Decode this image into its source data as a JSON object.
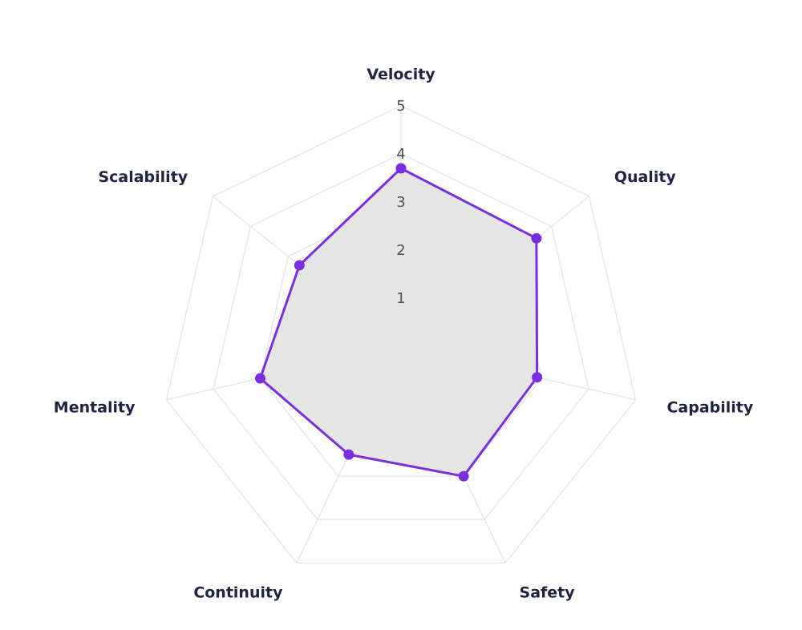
{
  "chart_data": {
    "type": "radar",
    "axes": [
      "Velocity",
      "Quality",
      "Capability",
      "Safety",
      "Continuity",
      "Mentality",
      "Scalability"
    ],
    "ticks": [
      "1",
      "2",
      "3",
      "4",
      "5"
    ],
    "range": [
      0,
      5
    ],
    "series": [
      {
        "values": [
          3.7,
          3.6,
          2.9,
          3.0,
          2.5,
          3.0,
          2.7
        ]
      }
    ],
    "grid": true,
    "legend": "none",
    "colors": {
      "line": "#7a2ee0",
      "fill": "#e4e4e4",
      "grid": "#e3e3e6"
    }
  }
}
